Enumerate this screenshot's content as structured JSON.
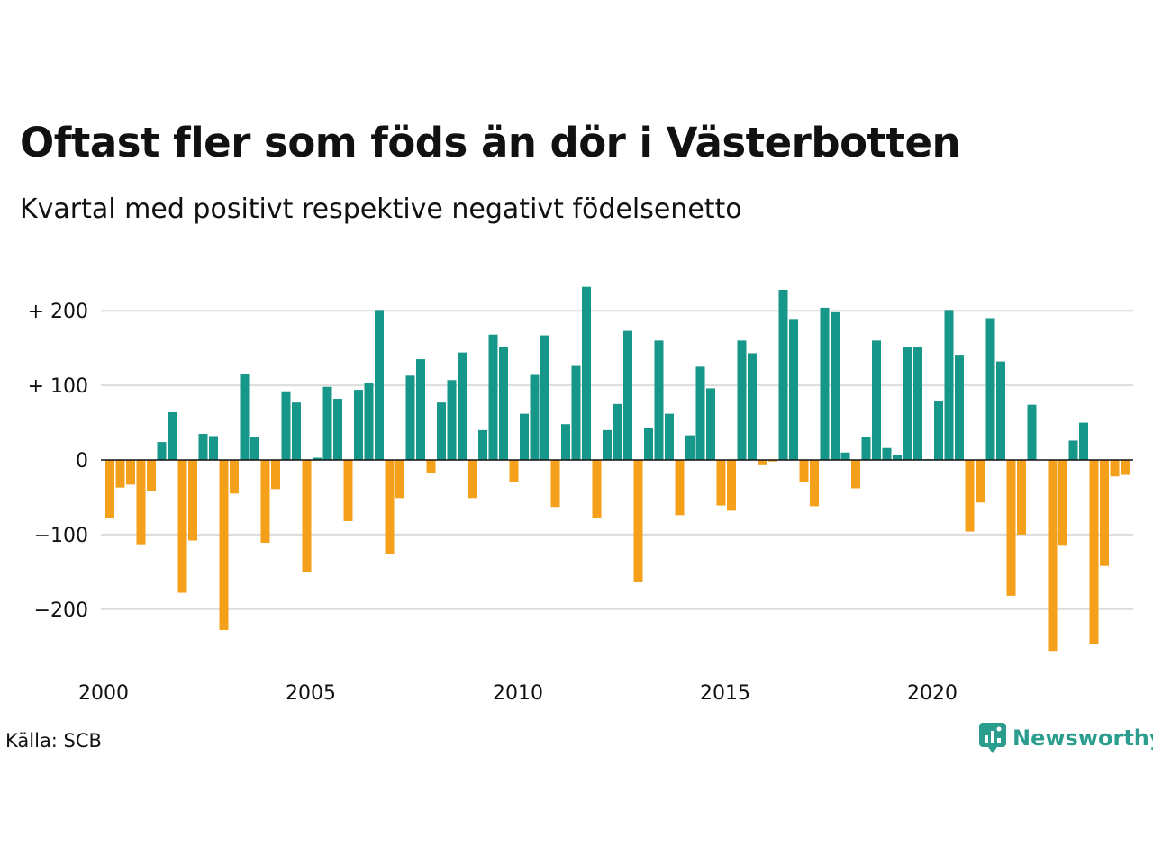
{
  "title": "Oftast fler som föds än dör i Västerbotten",
  "subtitle": "Kvartal med positivt respektive negativt födelsenetto",
  "source": "Källa: SCB",
  "brand": "Newsworthy",
  "colors": {
    "positive": "#17968a",
    "negative": "#f5a01a",
    "grid": "#dcdcdc",
    "brand": "#2a9d8f"
  },
  "chart_data": {
    "type": "bar",
    "y_ticks": [
      {
        "value": 200,
        "label": "+ 200"
      },
      {
        "value": 100,
        "label": "+ 100"
      },
      {
        "value": 0,
        "label": "0"
      },
      {
        "value": -100,
        "label": "−100"
      },
      {
        "value": -200,
        "label": "−200"
      }
    ],
    "x_ticks": [
      {
        "value": 2000,
        "label": "2000"
      },
      {
        "value": 2005,
        "label": "2005"
      },
      {
        "value": 2010,
        "label": "2010"
      },
      {
        "value": 2015,
        "label": "2015"
      },
      {
        "value": 2020,
        "label": "2020"
      }
    ],
    "ylim": [
      -270,
      240
    ],
    "xlim": [
      2000,
      2025
    ],
    "start_year": 2000,
    "start_quarter": 1,
    "values": [
      -78,
      -37,
      -33,
      -113,
      -42,
      24,
      64,
      -178,
      -108,
      35,
      32,
      -228,
      -45,
      115,
      31,
      -111,
      -39,
      92,
      77,
      -150,
      3,
      98,
      82,
      -82,
      94,
      103,
      201,
      -126,
      -51,
      113,
      135,
      -18,
      77,
      107,
      144,
      -51,
      40,
      168,
      152,
      -29,
      62,
      114,
      167,
      -63,
      48,
      126,
      232,
      -78,
      40,
      75,
      173,
      -164,
      43,
      160,
      62,
      -74,
      33,
      125,
      96,
      -61,
      -68,
      160,
      143,
      -7,
      -2,
      228,
      189,
      -30,
      -62,
      204,
      198,
      10,
      -38,
      31,
      160,
      16,
      7,
      151,
      151,
      1,
      79,
      201,
      141,
      -96,
      -57,
      190,
      132,
      -182,
      -100,
      74,
      0,
      -256,
      -115,
      26,
      50,
      -247,
      -142,
      -22,
      -20
    ]
  }
}
